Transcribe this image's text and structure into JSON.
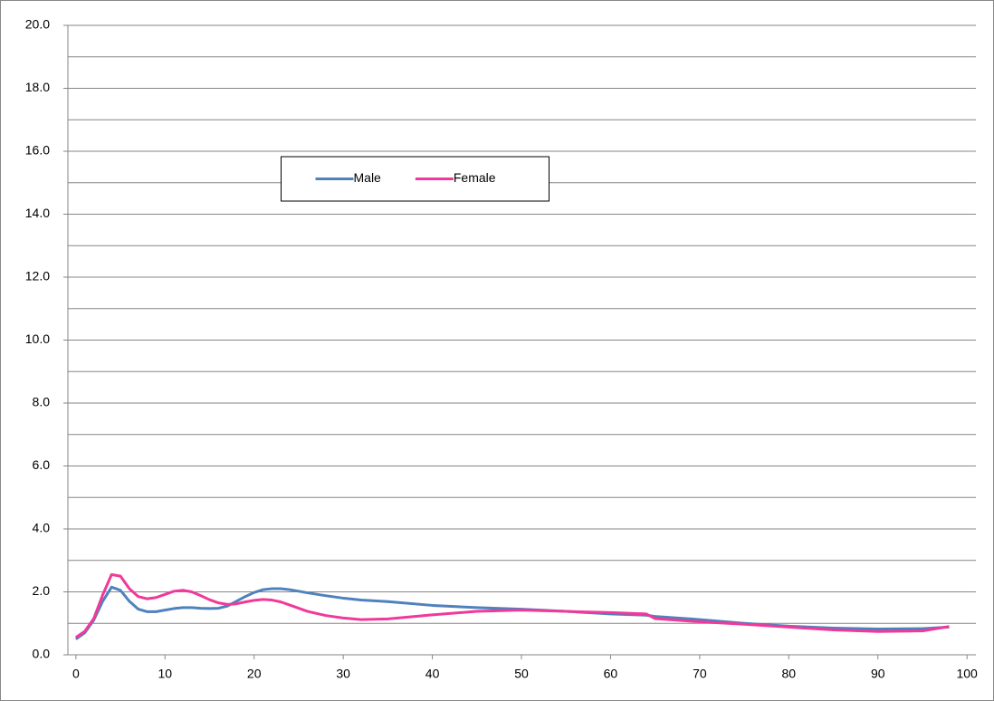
{
  "chart_data": {
    "type": "line",
    "x": [
      0,
      1,
      2,
      3,
      4,
      5,
      6,
      7,
      8,
      9,
      10,
      11,
      12,
      13,
      14,
      15,
      16,
      17,
      18,
      19,
      20,
      21,
      22,
      23,
      24,
      25,
      26,
      28,
      30,
      32,
      35,
      40,
      45,
      50,
      55,
      60,
      64,
      65,
      70,
      75,
      80,
      85,
      90,
      95,
      98
    ],
    "series": [
      {
        "name": "Male",
        "color": "#4f81bd",
        "values": [
          0.5,
          0.7,
          1.1,
          1.7,
          2.15,
          2.05,
          1.7,
          1.45,
          1.37,
          1.37,
          1.42,
          1.47,
          1.5,
          1.5,
          1.48,
          1.47,
          1.48,
          1.55,
          1.7,
          1.85,
          1.98,
          2.07,
          2.1,
          2.1,
          2.07,
          2.02,
          1.97,
          1.88,
          1.8,
          1.74,
          1.69,
          1.57,
          1.5,
          1.45,
          1.38,
          1.3,
          1.26,
          1.22,
          1.12,
          1.0,
          0.91,
          0.85,
          0.82,
          0.83,
          0.88
        ]
      },
      {
        "name": "Female",
        "color": "#f0399a",
        "values": [
          0.55,
          0.75,
          1.15,
          1.9,
          2.55,
          2.5,
          2.1,
          1.85,
          1.78,
          1.82,
          1.92,
          2.02,
          2.05,
          2.0,
          1.88,
          1.75,
          1.65,
          1.6,
          1.62,
          1.68,
          1.73,
          1.76,
          1.74,
          1.68,
          1.58,
          1.48,
          1.38,
          1.25,
          1.17,
          1.12,
          1.14,
          1.27,
          1.38,
          1.42,
          1.38,
          1.34,
          1.3,
          1.15,
          1.05,
          0.97,
          0.88,
          0.79,
          0.74,
          0.76,
          0.9
        ]
      }
    ],
    "xlim": [
      -0.9,
      101
    ],
    "xticks": [
      0,
      10,
      20,
      30,
      40,
      50,
      60,
      70,
      80,
      90,
      100
    ],
    "ylim": [
      0,
      20
    ],
    "yticks": [
      {
        "value": 0,
        "label": "0.0"
      },
      {
        "value": 2,
        "label": "2.0"
      },
      {
        "value": 4,
        "label": "4.0"
      },
      {
        "value": 6,
        "label": "6.0"
      },
      {
        "value": 8,
        "label": "8.0"
      },
      {
        "value": 10,
        "label": "10.0"
      },
      {
        "value": 12,
        "label": "12.0"
      },
      {
        "value": 14,
        "label": "14.0"
      },
      {
        "value": 16,
        "label": "16.0"
      },
      {
        "value": 18,
        "label": "18.0"
      },
      {
        "value": 20,
        "label": "20.0"
      }
    ],
    "minor_yticks": [
      1,
      3,
      5,
      7,
      9,
      11,
      13,
      15,
      17,
      19
    ],
    "grid": true,
    "legend": "upper center"
  }
}
